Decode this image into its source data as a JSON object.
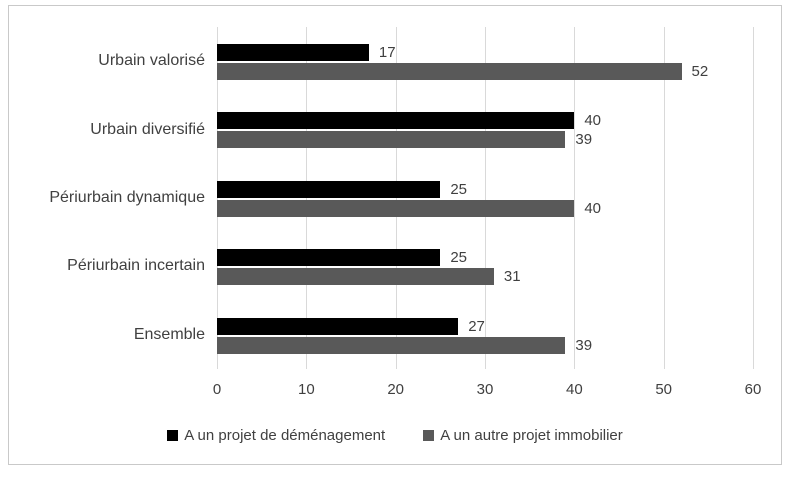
{
  "chart_data": {
    "type": "bar",
    "orientation": "horizontal",
    "title": "",
    "categories": [
      "Urbain valorisé",
      "Urbain diversifié",
      "Périurbain dynamique",
      "Périurbain incertain",
      "Ensemble"
    ],
    "series": [
      {
        "name": "A un projet de déménagement",
        "color": "#000000",
        "values": [
          17,
          40,
          25,
          25,
          27
        ]
      },
      {
        "name": "A un autre projet immobilier",
        "color": "#595959",
        "values": [
          52,
          39,
          40,
          31,
          39
        ]
      }
    ],
    "x_ticks": [
      "0",
      "10",
      "20",
      "30",
      "40",
      "50",
      "60"
    ],
    "xlim": [
      0,
      60
    ],
    "grid": "vertical-gridlines-on",
    "legend_position": "bottom",
    "value_labels": true,
    "colors": {
      "gridline": "#d9d9d9",
      "text": "#404040",
      "frame_border": "#c9c9c9",
      "background": "#ffffff"
    }
  }
}
